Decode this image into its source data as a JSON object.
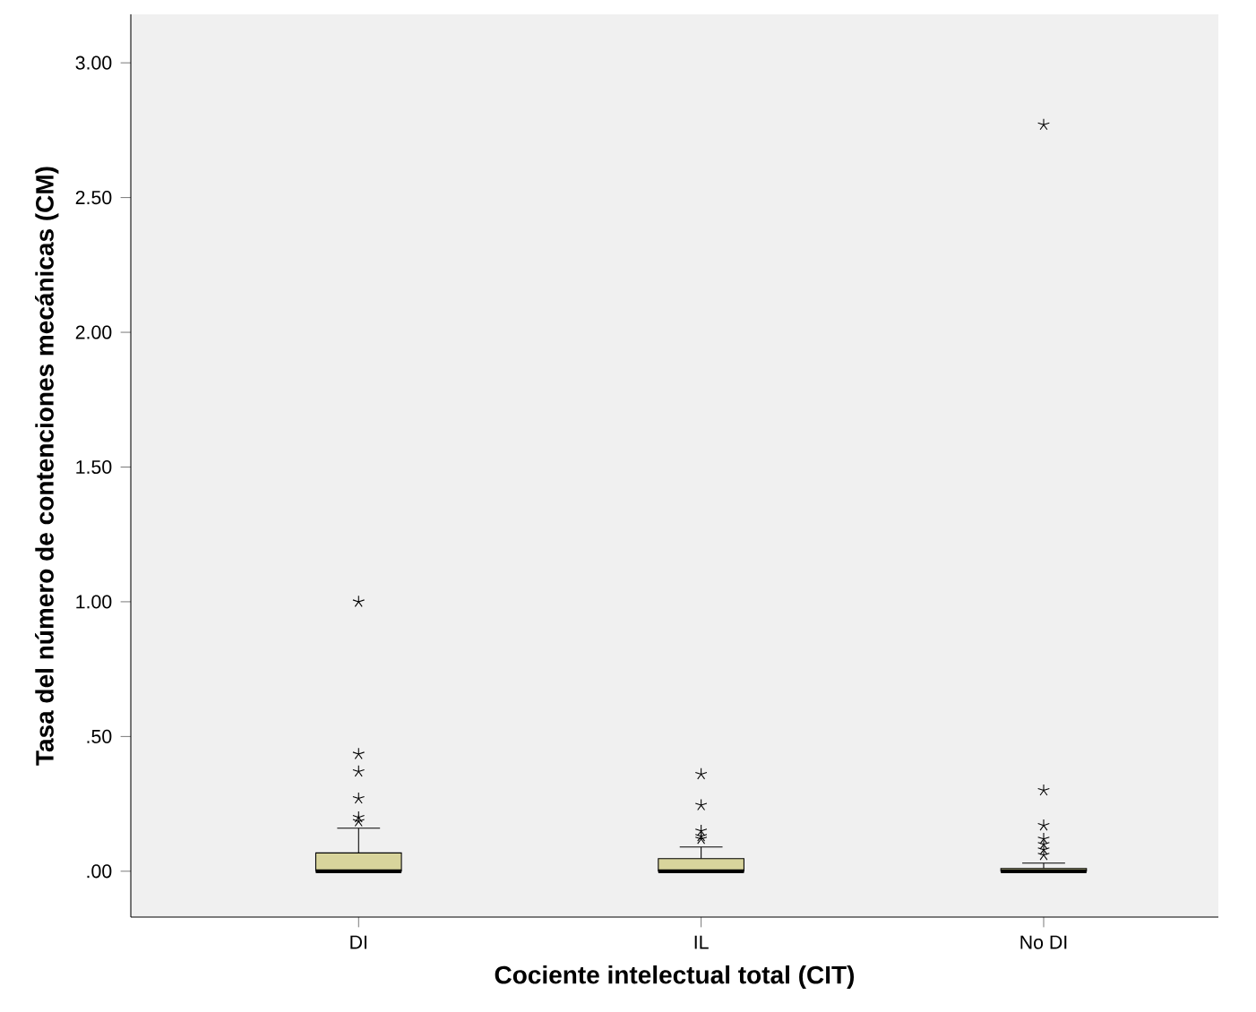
{
  "chart_data": {
    "type": "box",
    "xlabel": "Cociente intelectual total (CIT)",
    "ylabel": "Tasa del número de contenciones mecánicas (CM)",
    "categories": [
      "DI",
      "IL",
      "No DI"
    ],
    "color": "#d8d49c",
    "boxes": [
      {
        "low": 0,
        "q1": 0,
        "median": 0,
        "q3": 0.068,
        "high": 0.16,
        "outliers": [
          0.185,
          0.2,
          0.27,
          0.37,
          0.435,
          1.0
        ]
      },
      {
        "low": 0,
        "q1": 0,
        "median": 0,
        "q3": 0.047,
        "high": 0.09,
        "outliers": [
          0.12,
          0.13,
          0.15,
          0.245,
          0.36
        ]
      },
      {
        "low": 0,
        "q1": 0,
        "median": 0,
        "q3": 0.01,
        "high": 0.03,
        "outliers": [
          0.06,
          0.08,
          0.1,
          0.12,
          0.17,
          0.3,
          2.77
        ]
      }
    ],
    "ylim": [
      -0.17,
      3.18
    ],
    "yticks": [
      {
        "value": 0,
        "label": ".00"
      },
      {
        "value": 0.5,
        "label": ".50"
      },
      {
        "value": 1,
        "label": "1.00"
      },
      {
        "value": 1.5,
        "label": "1.50"
      },
      {
        "value": 2,
        "label": "2.00"
      },
      {
        "value": 2.5,
        "label": "2.50"
      },
      {
        "value": 3,
        "label": "3.00"
      }
    ]
  }
}
